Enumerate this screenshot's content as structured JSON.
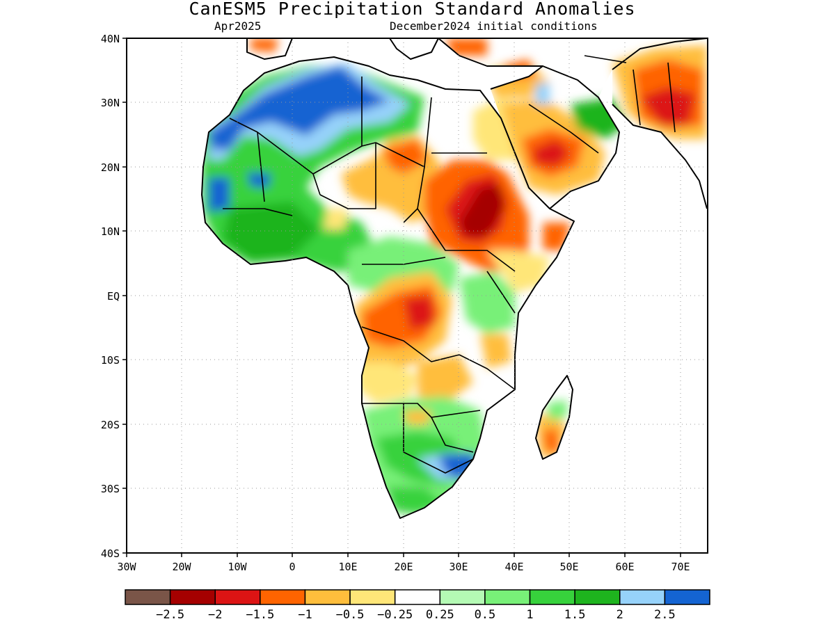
{
  "title": "CanESM5 Precipitation Standard Anomalies",
  "subtitle_left": "Apr2025",
  "subtitle_right": "December2024 initial conditions",
  "axes": {
    "lon_labels": [
      "30W",
      "20W",
      "10W",
      "0",
      "10E",
      "20E",
      "30E",
      "40E",
      "50E",
      "60E",
      "70E"
    ],
    "lat_labels": [
      "40N",
      "30N",
      "20N",
      "10N",
      "EQ",
      "10S",
      "20S",
      "30S",
      "40S"
    ],
    "lon_range": [
      -30,
      75
    ],
    "lat_range": [
      -40,
      40
    ]
  },
  "colorbar": {
    "colors": [
      "#7a5548",
      "#a50000",
      "#dc1414",
      "#ff6400",
      "#ffbe3c",
      "#ffe678",
      "#ffffff",
      "#b4fab4",
      "#78f078",
      "#37d23c",
      "#1eb41e",
      "#96d2fa",
      "#1464d2"
    ],
    "labels": [
      "-2.5",
      "-2",
      "-1.5",
      "-1",
      "-0.5",
      "-0.25",
      "0.25",
      "0.5",
      "1",
      "1.5",
      "2",
      "2.5"
    ]
  },
  "regions": [
    {
      "name": "nw-africa-strong-wet",
      "level": 2.5,
      "lon": -8,
      "lat": 26
    },
    {
      "name": "sahara-wet",
      "level": 2.5,
      "lon": 5,
      "lat": 28
    },
    {
      "name": "west-africa-wet",
      "level": 1.5,
      "lon": -5,
      "lat": 13
    },
    {
      "name": "guinea-wet",
      "level": 2.5,
      "lon": -14,
      "lat": 14
    },
    {
      "name": "sudan-dry",
      "level": -2,
      "lon": 34,
      "lat": 15
    },
    {
      "name": "ethiopia-dry",
      "level": -1.5,
      "lon": 38,
      "lat": 10
    },
    {
      "name": "arabia-dry",
      "level": -1.5,
      "lon": 47,
      "lat": 22
    },
    {
      "name": "iran-dry",
      "level": -1.5,
      "lon": 66,
      "lat": 29
    },
    {
      "name": "congo-angola-dry",
      "level": -1.5,
      "lon": 18,
      "lat": -4
    },
    {
      "name": "chad-dry",
      "level": -1,
      "lon": 19,
      "lat": 22
    },
    {
      "name": "southern-africa-wet",
      "level": 1,
      "lon": 24,
      "lat": -24
    },
    {
      "name": "south-africa-strong-wet",
      "level": 2.5,
      "lon": 30,
      "lat": -27
    },
    {
      "name": "madagascar-dry",
      "level": -1,
      "lon": 47,
      "lat": -23
    }
  ]
}
